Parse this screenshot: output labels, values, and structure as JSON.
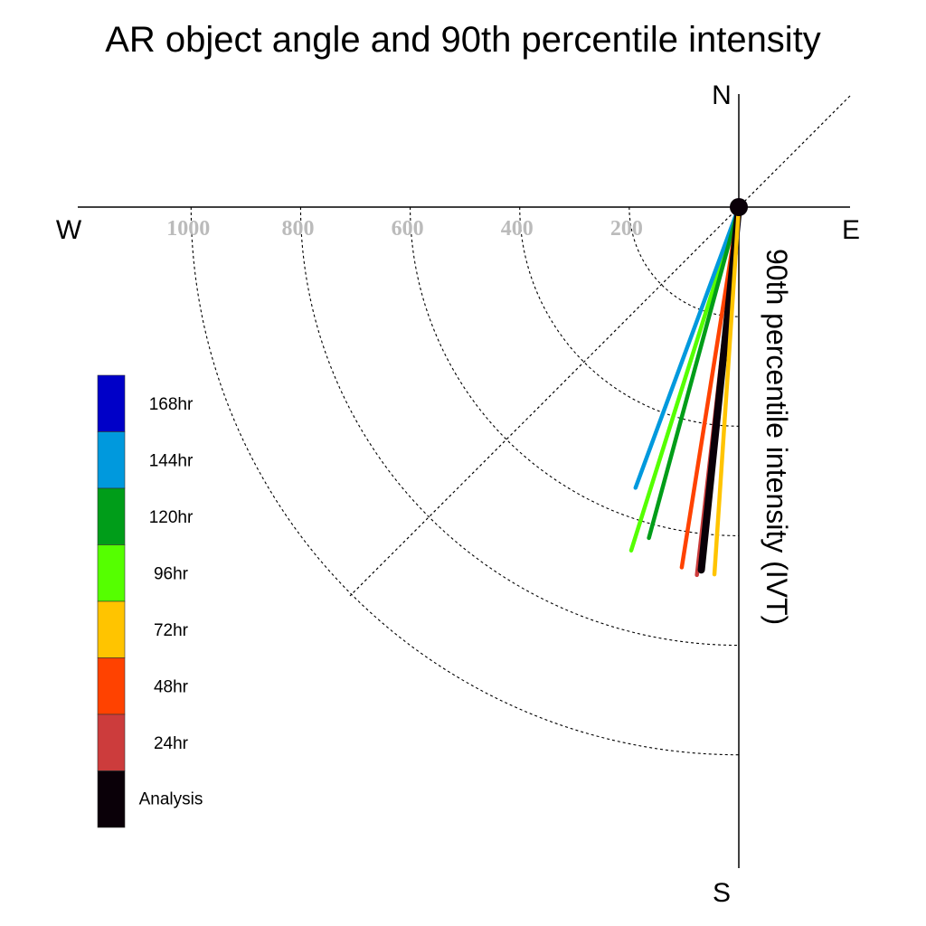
{
  "chart_data": {
    "type": "polar-line",
    "title": "AR object angle and 90th percentile intensity",
    "ylabel": "90th percentile intensity (IVT)",
    "compass": {
      "north": "N",
      "south": "S",
      "east": "E",
      "west": "W"
    },
    "radial_ticks": [
      "200",
      "400",
      "600",
      "800",
      "1000"
    ],
    "radial_tick_values": [
      200,
      400,
      600,
      800,
      1000
    ],
    "rlim": [
      0,
      1000
    ],
    "grid": true,
    "legend_position": "left",
    "legend": [
      {
        "name": "168hr",
        "color": "#0000c8"
      },
      {
        "name": "144hr",
        "color": "#0099dd"
      },
      {
        "name": "120hr",
        "color": "#009d19"
      },
      {
        "name": "96hr",
        "color": "#55ff00"
      },
      {
        "name": "72hr",
        "color": "#ffc400"
      },
      {
        "name": "48hr",
        "color": "#ff4200"
      },
      {
        "name": "24hr",
        "color": "#cc3c3c"
      },
      {
        "name": "Analysis",
        "color": "#0a0008"
      }
    ],
    "series": [
      {
        "name": "96hr",
        "angle_deg": 197.4,
        "value": 657,
        "color": "#55ff00"
      },
      {
        "name": "144hr",
        "angle_deg": 200.2,
        "value": 546,
        "color": "#0099dd"
      },
      {
        "name": "120hr",
        "angle_deg": 195.2,
        "value": 626,
        "color": "#009d19"
      },
      {
        "name": "48hr",
        "angle_deg": 189.0,
        "value": 666,
        "color": "#ff4200"
      },
      {
        "name": "24hr",
        "angle_deg": 186.5,
        "value": 676,
        "color": "#cc3c3c"
      },
      {
        "name": "Analysis",
        "angle_deg": 185.9,
        "value": 666,
        "color": "#0a0008"
      },
      {
        "name": "72hr",
        "angle_deg": 183.8,
        "value": 672,
        "color": "#ffc400"
      }
    ]
  }
}
